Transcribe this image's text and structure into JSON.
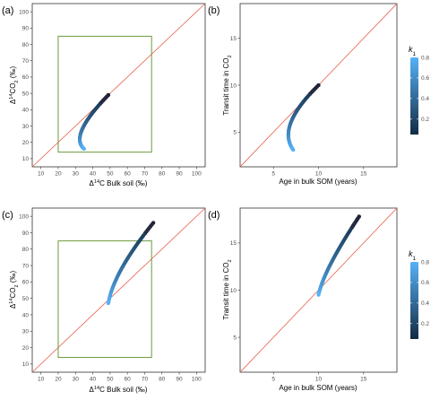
{
  "colors": {
    "identity_line": "#e8604c",
    "box": "#6b9a3a",
    "point_edge": "#3b0f1f",
    "grad_low": "#132b43",
    "grad_high": "#56b1f7",
    "panel_border": "#333333"
  },
  "chart_data": [
    {
      "id": "a",
      "type": "scatter",
      "panel_label": "(a)",
      "xlabel_parts": [
        "Δ",
        "14",
        "C Bulk soil (‰)"
      ],
      "ylabel_parts": [
        "Δ",
        "14",
        "CO",
        "2",
        " (‰)"
      ],
      "xlim": [
        5,
        105
      ],
      "ylim": [
        5,
        105
      ],
      "xticks": [
        10,
        20,
        30,
        40,
        50,
        60,
        70,
        80,
        90,
        100
      ],
      "yticks": [
        10,
        20,
        30,
        40,
        50,
        60,
        70,
        80,
        90,
        100
      ],
      "identity_line": true,
      "box": {
        "x": [
          20,
          74
        ],
        "y": [
          14,
          85
        ]
      },
      "curve": {
        "kind": "bend",
        "start": [
          49,
          49
        ],
        "ctrl": [
          26,
          24
        ],
        "end": [
          35,
          16
        ]
      },
      "k1_range": [
        0.05,
        0.8
      ]
    },
    {
      "id": "b",
      "type": "scatter",
      "panel_label": "(b)",
      "xlabel_parts": [
        "Age in bulk SOM (years)"
      ],
      "ylabel_parts": [
        "Transit time in CO",
        "2"
      ],
      "xlim": [
        1.3,
        18.7
      ],
      "ylim": [
        1.3,
        18.7
      ],
      "xticks": [
        5,
        10,
        15
      ],
      "yticks": [
        5,
        10,
        15
      ],
      "identity_line": true,
      "curve": {
        "kind": "bend",
        "start": [
          10,
          10
        ],
        "ctrl": [
          5.3,
          5.6
        ],
        "end": [
          7.2,
          3.1
        ]
      },
      "k1_range": [
        0.05,
        0.8
      ]
    },
    {
      "id": "c",
      "type": "scatter",
      "panel_label": "(c)",
      "xlabel_parts": [
        "Δ",
        "14",
        "C Bulk soil (‰)"
      ],
      "ylabel_parts": [
        "Δ",
        "14",
        "CO",
        "2",
        " (‰)"
      ],
      "xlim": [
        5,
        105
      ],
      "ylim": [
        5,
        105
      ],
      "xticks": [
        10,
        20,
        30,
        40,
        50,
        60,
        70,
        80,
        90,
        100
      ],
      "yticks": [
        10,
        20,
        30,
        40,
        50,
        60,
        70,
        80,
        90,
        100
      ],
      "identity_line": true,
      "box": {
        "x": [
          20,
          74
        ],
        "y": [
          14,
          85
        ]
      },
      "curve": {
        "kind": "arc",
        "start": [
          75,
          96
        ],
        "ctrl": [
          52,
          66
        ],
        "end": [
          49,
          47
        ]
      },
      "k1_range": [
        0.05,
        0.8
      ]
    },
    {
      "id": "d",
      "type": "scatter",
      "panel_label": "(d)",
      "xlabel_parts": [
        "Age in bulk SOM (years)"
      ],
      "ylabel_parts": [
        "Transit time in CO",
        "2"
      ],
      "xlim": [
        1.3,
        18.7
      ],
      "ylim": [
        1.3,
        18.7
      ],
      "xticks": [
        5,
        10,
        15
      ],
      "yticks": [
        5,
        10,
        15
      ],
      "identity_line": true,
      "curve": {
        "kind": "arc",
        "start": [
          14.5,
          17.8
        ],
        "ctrl": [
          10.6,
          12.2
        ],
        "end": [
          10,
          9.5
        ]
      },
      "k1_range": [
        0.05,
        0.8
      ]
    }
  ],
  "legend": {
    "title_parts": [
      "k",
      "1"
    ],
    "ticks": [
      0.2,
      0.4,
      0.6,
      0.8
    ],
    "range": [
      0.05,
      0.8
    ]
  }
}
